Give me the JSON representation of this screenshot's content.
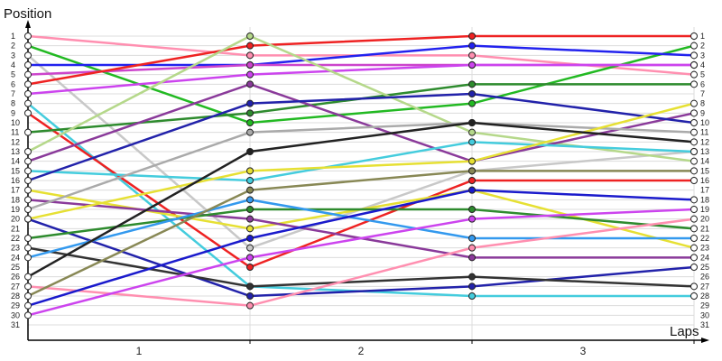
{
  "chart_data": {
    "type": "line",
    "ylabel": "Position",
    "xlabel": "Laps",
    "x": [
      0,
      1,
      2,
      3
    ],
    "x_tick_labels": [
      "1",
      "2",
      "3"
    ],
    "position_labels": [
      "1",
      "2",
      "3",
      "4",
      "5",
      "6",
      "7",
      "8",
      "9",
      "10",
      "11",
      "12",
      "13",
      "14",
      "15",
      "16",
      "17",
      "18",
      "19",
      "20",
      "21",
      "22",
      "23",
      "24",
      "25",
      "26",
      "27",
      "28",
      "29",
      "30",
      "31"
    ],
    "ylim": [
      31,
      1
    ],
    "grid": true,
    "series": [
      {
        "color": "#ff8fb0",
        "values": [
          1,
          3,
          3,
          5
        ]
      },
      {
        "color": "#22b922",
        "values": [
          2,
          10,
          8,
          2
        ]
      },
      {
        "color": "#c8c8c8",
        "values": [
          3,
          23,
          15,
          13
        ]
      },
      {
        "color": "#2222ee",
        "values": [
          4,
          4,
          2,
          3
        ]
      },
      {
        "color": "#cc44cc",
        "values": [
          5,
          4,
          4,
          4
        ]
      },
      {
        "color": "#ee2222",
        "values": [
          6,
          2,
          1,
          1
        ]
      },
      {
        "color": "#cc44ee",
        "values": [
          7,
          5,
          4,
          4
        ]
      },
      {
        "color": "#44ccdd",
        "values": [
          8,
          27,
          28,
          28
        ]
      },
      {
        "color": "#ee2222",
        "values": [
          9,
          25,
          16,
          16
        ]
      },
      {
        "color": "#2e8b2e",
        "values": [
          11,
          9,
          6,
          6
        ]
      },
      {
        "color": "#b5d88a",
        "values": [
          13,
          1,
          11,
          14
        ]
      },
      {
        "color": "#8a3a9a",
        "values": [
          14,
          6,
          14,
          9
        ]
      },
      {
        "color": "#44ccdd",
        "values": [
          15,
          16,
          12,
          13
        ]
      },
      {
        "color": "#2222aa",
        "values": [
          16,
          8,
          7,
          10
        ]
      },
      {
        "color": "#e6e033",
        "values": [
          17,
          21,
          17,
          23
        ]
      },
      {
        "color": "#8a3a9a",
        "values": [
          18,
          20,
          24,
          24
        ]
      },
      {
        "color": "#aaaaaa",
        "values": [
          19,
          11,
          10,
          11
        ]
      },
      {
        "color": "#e6e033",
        "values": [
          20,
          15,
          14,
          8
        ]
      },
      {
        "color": "#2222aa",
        "values": [
          20,
          28,
          27,
          25
        ]
      },
      {
        "color": "#2e8b2e",
        "values": [
          22,
          19,
          19,
          21
        ]
      },
      {
        "color": "#333333",
        "values": [
          23,
          27,
          26,
          27
        ]
      },
      {
        "color": "#3399ee",
        "values": [
          24,
          18,
          22,
          22
        ]
      },
      {
        "color": "#222222",
        "values": [
          26,
          13,
          10,
          12
        ]
      },
      {
        "color": "#ff8fb0",
        "values": [
          27,
          29,
          23,
          20
        ]
      },
      {
        "color": "#888855",
        "values": [
          28,
          17,
          15,
          15
        ]
      },
      {
        "color": "#1a1acc",
        "values": [
          29,
          22,
          17,
          18
        ]
      },
      {
        "color": "#cc44ee",
        "values": [
          30,
          24,
          20,
          19
        ]
      }
    ]
  }
}
